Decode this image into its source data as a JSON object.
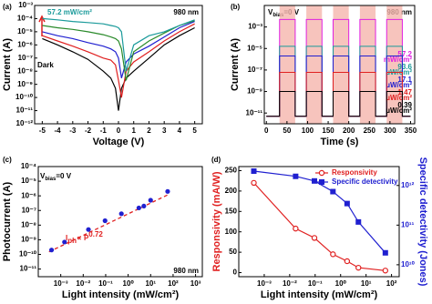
{
  "chart_data": [
    {
      "label": "(a)",
      "type": "line",
      "xlabel": "Voltage (V)",
      "ylabel": "Current (A)",
      "xlim": [
        -5.5,
        5.5
      ],
      "xticks": [
        -5,
        -4,
        -3,
        -2,
        -1,
        0,
        1,
        2,
        3,
        4,
        5
      ],
      "ylim": [
        1e-12,
        0.001
      ],
      "ylog": true,
      "yticks": [
        {
          "value": 0.001,
          "label": "10⁻³"
        },
        {
          "value": 0.0001,
          "label": "10⁻⁴"
        },
        {
          "value": 1e-05,
          "label": "10⁻⁵"
        },
        {
          "value": 1e-06,
          "label": "10⁻⁶"
        },
        {
          "value": 1e-07,
          "label": "10⁻⁷"
        },
        {
          "value": 1e-08,
          "label": "10⁻⁸"
        },
        {
          "value": 1e-09,
          "label": "10⁻⁹"
        },
        {
          "value": 1e-10,
          "label": "10⁻¹⁰"
        },
        {
          "value": 1e-11,
          "label": "10⁻¹¹"
        },
        {
          "value": 1e-12,
          "label": "10⁻¹²"
        }
      ],
      "x": [
        -5,
        -4,
        -3,
        -2,
        -1,
        -0.5,
        -0.2,
        0,
        0.2,
        0.5,
        1,
        2,
        3,
        4,
        5
      ],
      "series": [
        {
          "color": "#000000",
          "values": [
            3e-06,
            1e-06,
            3e-07,
            8e-08,
            1e-08,
            3e-09,
            5e-10,
            1e-11,
            5e-10,
            3e-09,
            1e-08,
            1e-07,
            1e-06,
            5e-06,
            2e-05
          ]
        },
        {
          "color": "#e02020",
          "values": [
            5e-06,
            2e-06,
            8e-07,
            3e-07,
            1e-07,
            7e-08,
            3e-08,
            2e-09,
            1e-10,
            1e-08,
            5e-08,
            3e-07,
            2e-06,
            1e-05,
            4e-05
          ]
        },
        {
          "color": "#2020d0",
          "values": [
            1e-05,
            5e-06,
            3e-06,
            1.5e-06,
            8e-07,
            5e-07,
            3e-07,
            1e-07,
            3e-09,
            5e-08,
            2e-07,
            8e-07,
            4e-06,
            2e-05,
            6e-05
          ]
        },
        {
          "color": "#2a8a2a",
          "values": [
            3e-05,
            2e-05,
            1.5e-05,
            1e-05,
            6e-06,
            4e-06,
            3e-06,
            2e-06,
            5e-07,
            2e-09,
            3e-07,
            2e-06,
            8e-06,
            3e-05,
            7e-05
          ]
        },
        {
          "color": "#1a9a9a",
          "values": [
            0.0001,
            8e-05,
            6e-05,
            5e-05,
            4e-05,
            3e-05,
            2.5e-05,
            2e-05,
            1e-05,
            1e-08,
            1e-06,
            5e-06,
            1e-05,
            3e-05,
            8e-05
          ]
        }
      ],
      "annotations": [
        "57.2 mW/cm²",
        "Dark",
        "980 nm"
      ]
    },
    {
      "label": "(b)",
      "type": "pulse",
      "xlabel": "Time (s)",
      "ylabel": "Current (A)",
      "xlim": [
        -5,
        360
      ],
      "xticks": [
        0,
        50,
        100,
        150,
        200,
        250,
        300,
        350
      ],
      "ylim": [
        1e-12,
        0.1
      ],
      "ylog": true,
      "yticks": [
        {
          "value": 0.001,
          "label": "10⁻³"
        },
        {
          "value": 1e-05,
          "label": "10⁻⁵"
        },
        {
          "value": 1e-07,
          "label": "10⁻⁷"
        },
        {
          "value": 1e-09,
          "label": "10⁻⁹"
        },
        {
          "value": 1e-11,
          "label": "10⁻¹¹"
        }
      ],
      "time_span": [
        0,
        350
      ],
      "on_intervals": [
        [
          32,
          70
        ],
        [
          97,
          135
        ],
        [
          162,
          200
        ],
        [
          227,
          265
        ],
        [
          292,
          330
        ]
      ],
      "shade_color": "#f5b5ad",
      "off_value": 5e-12,
      "series": [
        {
          "name": "57.2",
          "unit": "mW/cm²",
          "color": "#e020e0",
          "value": 0.005
        },
        {
          "name": "93.6",
          "unit": "µW/cm²",
          "color": "#1a9a9a",
          "value": 1.6e-05
        },
        {
          "name": "17.1",
          "unit": "µW/cm²",
          "color": "#2020d0",
          "value": 2e-06
        },
        {
          "name": "1.47",
          "unit": "µW/cm²",
          "color": "#e02020",
          "value": 6e-08
        },
        {
          "name": "0.39",
          "unit": "µW/cm²",
          "color": "#000000",
          "value": 1e-09
        }
      ],
      "vbias": [
        "V",
        "bias",
        "=0 V"
      ],
      "annotations": [
        "980 nm"
      ]
    },
    {
      "label": "(c)",
      "type": "scatter",
      "xlabel": "Light intensity (mW/cm²)",
      "ylabel": "Photocurrent (A)",
      "xlim": [
        0.0001,
        2000.0
      ],
      "xlog": true,
      "xticks": [
        {
          "value": 0.001,
          "label": "10⁻³"
        },
        {
          "value": 0.01,
          "label": "10⁻²"
        },
        {
          "value": 0.1,
          "label": "10⁻¹"
        },
        {
          "value": 1,
          "label": "10⁰"
        },
        {
          "value": 10,
          "label": "10¹"
        },
        {
          "value": 100,
          "label": "10²"
        },
        {
          "value": 1000,
          "label": "10³"
        }
      ],
      "ylim": [
        3e-12,
        0.0001
      ],
      "ylog": true,
      "yticks": [
        {
          "value": 0.0001,
          "label": "10⁻⁴"
        },
        {
          "value": 1e-05,
          "label": "10⁻⁵"
        },
        {
          "value": 1e-06,
          "label": "10⁻⁶"
        },
        {
          "value": 1e-07,
          "label": "10⁻⁷"
        },
        {
          "value": 1e-08,
          "label": "10⁻⁸"
        },
        {
          "value": 1e-09,
          "label": "10⁻⁹"
        },
        {
          "value": 1e-10,
          "label": "10⁻¹⁰"
        },
        {
          "value": 1e-11,
          "label": "10⁻¹¹"
        }
      ],
      "x": [
        0.00039,
        0.00147,
        0.0171,
        0.0936,
        0.5,
        3,
        5,
        10,
        57.2
      ],
      "values": [
        2e-10,
        7e-10,
        5e-09,
        2e-08,
        6e-08,
        1.5e-07,
        2e-07,
        5e-07,
        2e-06
      ],
      "color": "#2020d0",
      "fit": {
        "x": [
          0.0003,
          60
        ],
        "y": [
          1.5e-10,
          1.2e-06
        ],
        "color": "#e02020"
      },
      "fit_label": [
        "I",
        "ph",
        "∝ P",
        "0.72"
      ],
      "vbias": [
        "V",
        "bias",
        "=0 V"
      ],
      "annotations": [
        "980 nm"
      ]
    },
    {
      "label": "(d)",
      "type": "line",
      "xlabel": "Light intensity (mW/cm²)",
      "ylabel": "Responsivity (mA/W)",
      "y2label": "Specific detectivity (Jones)",
      "ylabel_color": "#e02020",
      "y2label_color": "#2020d0",
      "markers": true,
      "legend": "upper right",
      "xlim": [
        0.0001,
        200.0
      ],
      "xlog": true,
      "xticks": [
        {
          "value": 0.001,
          "label": "10⁻³"
        },
        {
          "value": 0.01,
          "label": "10⁻²"
        },
        {
          "value": 0.1,
          "label": "10⁻¹"
        },
        {
          "value": 1,
          "label": "10⁰"
        },
        {
          "value": 10,
          "label": "10¹"
        },
        {
          "value": 100,
          "label": "10²"
        }
      ],
      "ylim": [
        -10,
        260
      ],
      "yticks": [
        0,
        50,
        100,
        150,
        200,
        250
      ],
      "y2lim": [
        5000000000.0,
        3000000000000.0
      ],
      "y2log": true,
      "y2ticks": [
        {
          "value": 10000000000.0,
          "label": "10¹⁰"
        },
        {
          "value": 100000000000.0,
          "label": "10¹¹"
        },
        {
          "value": 1000000000000.0,
          "label": "10¹²"
        }
      ],
      "x": [
        0.00039,
        0.0171,
        0.0936,
        0.5,
        1.8,
        5,
        57.2
      ],
      "series": [
        {
          "name": "Responsivity",
          "color": "#e02020",
          "marker": "circle",
          "values": [
            220,
            108,
            85,
            45,
            28,
            12,
            5
          ]
        },
        {
          "name": "Specific detectivity",
          "color": "#2020d0",
          "marker": "square",
          "axis": "y2",
          "values": [
            2300000000000.0,
            1700000000000.0,
            1300000000000.0,
            700000000000.0,
            350000000000.0,
            120000000000.0,
            20000000000.0
          ]
        }
      ]
    }
  ]
}
